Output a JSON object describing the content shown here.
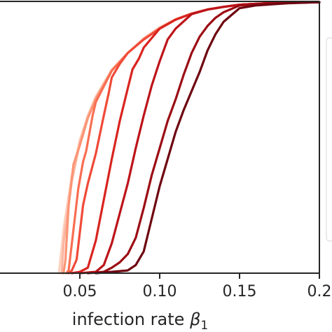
{
  "chart_data": {
    "type": "line",
    "title": "",
    "xlabel": "infection rate β₁",
    "ylabel": "",
    "xlim": [
      0.0,
      0.2
    ],
    "ylim": [
      0.0,
      1.0
    ],
    "grid": false,
    "legend": "right, mostly cropped",
    "x_ticks": [
      {
        "value": 0.05,
        "label": "0.05"
      },
      {
        "value": 0.1,
        "label": "0.10"
      },
      {
        "value": 0.15,
        "label": "0.15"
      },
      {
        "value": 0.2,
        "label": "0.2"
      }
    ],
    "x_axis_title": {
      "main": "infection rate ",
      "symbol": "β",
      "subscript": "1"
    },
    "colors": [
      "#fdd0be",
      "#fcb4a0",
      "#fb9474",
      "#f86e52",
      "#f04a38",
      "#d9241f",
      "#bd1419",
      "#9c0c14",
      "#6e0510"
    ],
    "series": [
      {
        "values": [
          [
            0.0369,
            0.0
          ],
          [
            0.04,
            0.17
          ],
          [
            0.045,
            0.36
          ],
          [
            0.05,
            0.49
          ],
          [
            0.055,
            0.58
          ],
          [
            0.06,
            0.65
          ],
          [
            0.07,
            0.75
          ],
          [
            0.08,
            0.81
          ],
          [
            0.09,
            0.865
          ],
          [
            0.1,
            0.905
          ],
          [
            0.11,
            0.935
          ],
          [
            0.12,
            0.955
          ],
          [
            0.13,
            0.97
          ],
          [
            0.14,
            0.98
          ],
          [
            0.15,
            0.988
          ],
          [
            0.17,
            0.994
          ],
          [
            0.2,
            0.997
          ]
        ]
      },
      {
        "values": [
          [
            0.0386,
            0.0
          ],
          [
            0.04,
            0.12
          ],
          [
            0.045,
            0.34
          ],
          [
            0.05,
            0.48
          ],
          [
            0.055,
            0.575
          ],
          [
            0.06,
            0.645
          ],
          [
            0.07,
            0.745
          ],
          [
            0.08,
            0.81
          ],
          [
            0.09,
            0.863
          ],
          [
            0.1,
            0.903
          ],
          [
            0.11,
            0.934
          ],
          [
            0.12,
            0.955
          ],
          [
            0.13,
            0.97
          ],
          [
            0.14,
            0.98
          ],
          [
            0.15,
            0.988
          ],
          [
            0.17,
            0.994
          ],
          [
            0.2,
            0.997
          ]
        ]
      },
      {
        "values": [
          [
            0.0398,
            0.0
          ],
          [
            0.041,
            0.05
          ],
          [
            0.043,
            0.25
          ],
          [
            0.046,
            0.4
          ],
          [
            0.05,
            0.47
          ],
          [
            0.055,
            0.57
          ],
          [
            0.06,
            0.64
          ],
          [
            0.07,
            0.745
          ],
          [
            0.08,
            0.81
          ],
          [
            0.09,
            0.86
          ],
          [
            0.1,
            0.9
          ],
          [
            0.11,
            0.933
          ],
          [
            0.12,
            0.955
          ],
          [
            0.13,
            0.97
          ],
          [
            0.14,
            0.98
          ],
          [
            0.15,
            0.988
          ],
          [
            0.17,
            0.994
          ],
          [
            0.2,
            0.997
          ]
        ]
      },
      {
        "values": [
          [
            0.0415,
            0.0
          ],
          [
            0.043,
            0.01
          ],
          [
            0.046,
            0.16
          ],
          [
            0.049,
            0.31
          ],
          [
            0.052,
            0.41
          ],
          [
            0.054,
            0.45
          ],
          [
            0.058,
            0.58
          ],
          [
            0.06,
            0.63
          ],
          [
            0.07,
            0.745
          ],
          [
            0.08,
            0.81
          ],
          [
            0.09,
            0.86
          ],
          [
            0.1,
            0.9
          ],
          [
            0.11,
            0.933
          ],
          [
            0.12,
            0.955
          ],
          [
            0.13,
            0.97
          ],
          [
            0.14,
            0.98
          ],
          [
            0.15,
            0.988
          ],
          [
            0.17,
            0.994
          ],
          [
            0.2,
            0.997
          ]
        ]
      },
      {
        "values": [
          [
            0.043,
            0.0
          ],
          [
            0.045,
            0.01
          ],
          [
            0.048,
            0.05
          ],
          [
            0.052,
            0.25
          ],
          [
            0.055,
            0.33
          ],
          [
            0.06,
            0.44
          ],
          [
            0.065,
            0.58
          ],
          [
            0.068,
            0.66
          ],
          [
            0.07,
            0.72
          ],
          [
            0.075,
            0.77
          ],
          [
            0.08,
            0.81
          ],
          [
            0.09,
            0.86
          ],
          [
            0.1,
            0.9
          ],
          [
            0.11,
            0.933
          ],
          [
            0.12,
            0.955
          ],
          [
            0.13,
            0.97
          ],
          [
            0.14,
            0.98
          ],
          [
            0.15,
            0.988
          ],
          [
            0.17,
            0.994
          ],
          [
            0.2,
            0.997
          ]
        ]
      },
      {
        "values": [
          [
            0.045,
            0.0
          ],
          [
            0.05,
            0.005
          ],
          [
            0.055,
            0.02
          ],
          [
            0.06,
            0.12
          ],
          [
            0.065,
            0.27
          ],
          [
            0.07,
            0.42
          ],
          [
            0.075,
            0.56
          ],
          [
            0.08,
            0.68
          ],
          [
            0.083,
            0.75
          ],
          [
            0.087,
            0.79
          ],
          [
            0.09,
            0.83
          ],
          [
            0.1,
            0.9
          ],
          [
            0.11,
            0.933
          ],
          [
            0.12,
            0.955
          ],
          [
            0.13,
            0.97
          ],
          [
            0.14,
            0.98
          ],
          [
            0.15,
            0.988
          ],
          [
            0.17,
            0.994
          ],
          [
            0.2,
            0.997
          ]
        ]
      },
      {
        "values": [
          [
            0.05,
            0.0
          ],
          [
            0.06,
            0.005
          ],
          [
            0.065,
            0.03
          ],
          [
            0.07,
            0.11
          ],
          [
            0.075,
            0.22
          ],
          [
            0.08,
            0.33
          ],
          [
            0.085,
            0.46
          ],
          [
            0.09,
            0.58
          ],
          [
            0.095,
            0.69
          ],
          [
            0.1,
            0.78
          ],
          [
            0.105,
            0.86
          ],
          [
            0.11,
            0.9
          ],
          [
            0.12,
            0.953
          ],
          [
            0.13,
            0.97
          ],
          [
            0.14,
            0.98
          ],
          [
            0.15,
            0.988
          ],
          [
            0.17,
            0.994
          ],
          [
            0.2,
            0.997
          ]
        ]
      },
      {
        "values": [
          [
            0.055,
            0.0
          ],
          [
            0.065,
            0.005
          ],
          [
            0.07,
            0.02
          ],
          [
            0.075,
            0.04
          ],
          [
            0.08,
            0.07
          ],
          [
            0.085,
            0.13
          ],
          [
            0.09,
            0.24
          ],
          [
            0.095,
            0.36
          ],
          [
            0.1,
            0.46
          ],
          [
            0.105,
            0.56
          ],
          [
            0.11,
            0.64
          ],
          [
            0.115,
            0.73
          ],
          [
            0.12,
            0.81
          ],
          [
            0.125,
            0.87
          ],
          [
            0.13,
            0.91
          ],
          [
            0.135,
            0.94
          ],
          [
            0.14,
            0.96
          ],
          [
            0.15,
            0.985
          ],
          [
            0.17,
            0.994
          ],
          [
            0.2,
            0.997
          ]
        ]
      },
      {
        "values": [
          [
            0.06,
            0.0
          ],
          [
            0.07,
            0.005
          ],
          [
            0.08,
            0.01
          ],
          [
            0.085,
            0.03
          ],
          [
            0.09,
            0.08
          ],
          [
            0.095,
            0.2
          ],
          [
            0.1,
            0.32
          ],
          [
            0.105,
            0.42
          ],
          [
            0.11,
            0.52
          ],
          [
            0.115,
            0.6
          ],
          [
            0.12,
            0.67
          ],
          [
            0.125,
            0.74
          ],
          [
            0.13,
            0.82
          ],
          [
            0.135,
            0.88
          ],
          [
            0.14,
            0.925
          ],
          [
            0.145,
            0.95
          ],
          [
            0.15,
            0.975
          ],
          [
            0.16,
            0.985
          ],
          [
            0.18,
            0.993
          ],
          [
            0.2,
            0.997
          ]
        ]
      }
    ]
  }
}
